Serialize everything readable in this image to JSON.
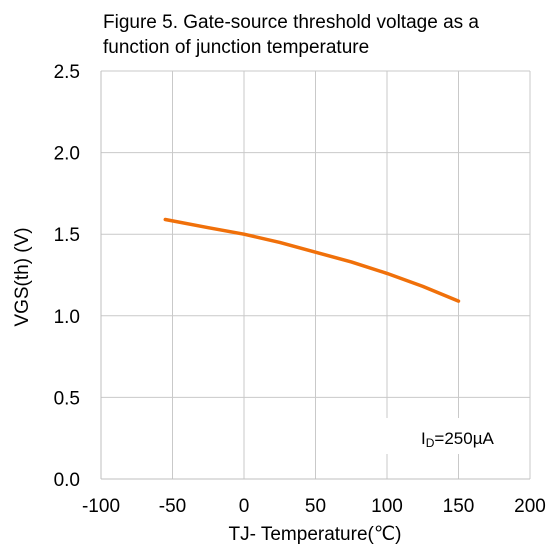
{
  "chart_data": {
    "type": "line",
    "title_lines": [
      "Figure 5. Gate-source threshold voltage as a",
      "function of junction temperature"
    ],
    "xlabel": "TJ- Temperature(℃)",
    "ylabel": "VGS(th) (V)",
    "xlim": [
      -100,
      200
    ],
    "ylim": [
      0.0,
      2.5
    ],
    "x_ticks": [
      -100,
      -50,
      0,
      50,
      100,
      150,
      200
    ],
    "x_tick_labels": [
      "-100",
      "-50",
      "0",
      "50",
      "100",
      "150",
      "200"
    ],
    "y_ticks": [
      0.0,
      0.5,
      1.0,
      1.5,
      2.0,
      2.5
    ],
    "y_tick_labels": [
      "0.0",
      "0.5",
      "1.0",
      "1.5",
      "2.0",
      "2.5"
    ],
    "grid": true,
    "annotation": {
      "main": "I",
      "sub": "D",
      "rest": "=250µA"
    },
    "series": [
      {
        "color": "#F0700A",
        "x": [
          -55,
          -25,
          0,
          25,
          50,
          75,
          100,
          125,
          150
        ],
        "y": [
          1.59,
          1.54,
          1.5,
          1.45,
          1.39,
          1.33,
          1.26,
          1.18,
          1.09
        ]
      }
    ]
  }
}
